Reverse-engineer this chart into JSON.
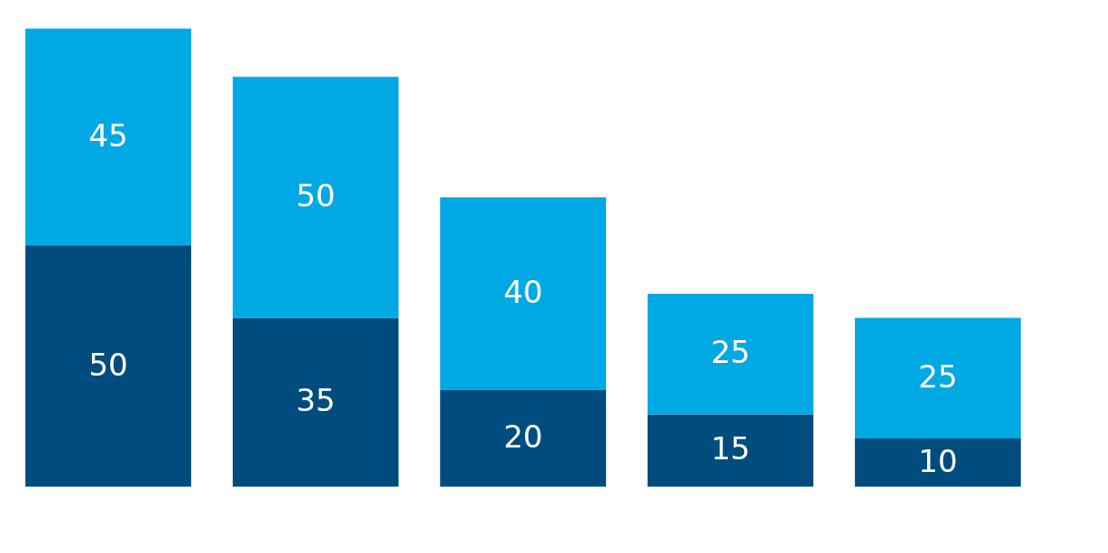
{
  "chart_data": {
    "type": "bar",
    "stacked": true,
    "data_labels": true,
    "categories": [
      null,
      null,
      null,
      null,
      null
    ],
    "series": [
      {
        "color": "#004c7e",
        "values": [
          50,
          35,
          20,
          15,
          10
        ]
      },
      {
        "color": "#00a9e3",
        "values": [
          45,
          50,
          40,
          25,
          25
        ]
      }
    ]
  }
}
